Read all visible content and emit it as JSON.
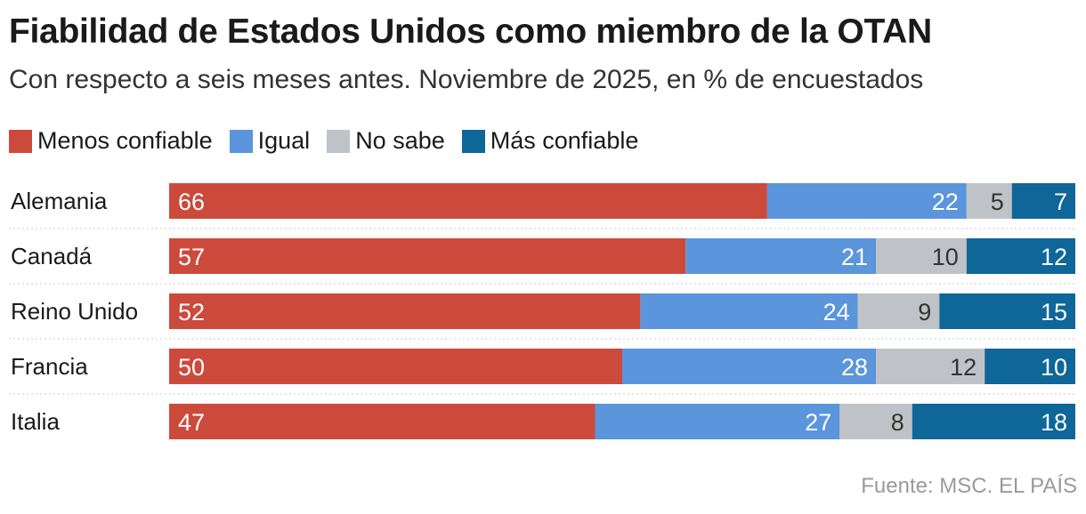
{
  "header": {
    "title": "Fiabilidad de Estados Unidos como miembro de la OTAN",
    "subtitle": "Con respecto a seis meses antes. Noviembre de 2025, en % de encuestados"
  },
  "legend": [
    {
      "label": "Menos confiable",
      "color": "#cc4a3c"
    },
    {
      "label": "Igual",
      "color": "#5b95db"
    },
    {
      "label": "No sabe",
      "color": "#bfc3c7"
    },
    {
      "label": "Más confiable",
      "color": "#0e6699"
    }
  ],
  "source": "Fuente: MSC. EL PAÍS",
  "chart_data": {
    "type": "bar",
    "orientation": "horizontal",
    "stacked": true,
    "categories": [
      "Alemania",
      "Canadá",
      "Reino Unido",
      "Francia",
      "Italia"
    ],
    "series": [
      {
        "name": "Menos confiable",
        "color": "#cc4a3c",
        "label_color": "#ffffff",
        "values": [
          66,
          57,
          52,
          50,
          47
        ]
      },
      {
        "name": "Igual",
        "color": "#5b95db",
        "label_color": "#ffffff",
        "values": [
          22,
          21,
          24,
          28,
          27
        ]
      },
      {
        "name": "No sabe",
        "color": "#bfc3c7",
        "label_color": "#333333",
        "values": [
          5,
          10,
          9,
          12,
          8
        ]
      },
      {
        "name": "Más confiable",
        "color": "#0e6699",
        "label_color": "#ffffff",
        "values": [
          7,
          12,
          15,
          10,
          18
        ]
      }
    ],
    "xlim": [
      0,
      100
    ],
    "grid": false,
    "legend_position": "top-left"
  }
}
